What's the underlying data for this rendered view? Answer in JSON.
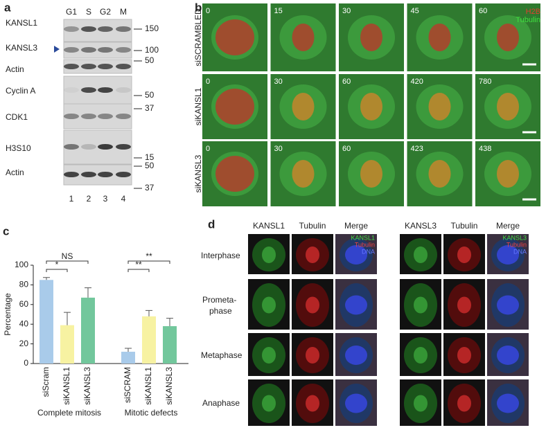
{
  "panel_labels": [
    "a",
    "b",
    "c",
    "d"
  ],
  "panel_a": {
    "lanes": [
      "G1",
      "S",
      "G2",
      "M"
    ],
    "rows": [
      "KANSL1",
      "KANSL3",
      "Actin",
      "Cyclin A",
      "CDK1",
      "H3S10",
      "Actin"
    ],
    "markers": [
      "150",
      "100",
      "50",
      "50",
      "37",
      "15",
      "50",
      "37"
    ],
    "lane_numbers": [
      "1",
      "2",
      "3",
      "4"
    ]
  },
  "panel_b": {
    "legend": [
      "H2B",
      "Tubulin"
    ],
    "rows": [
      {
        "label": "siSCRAMBLED",
        "times": [
          "0",
          "15",
          "30",
          "45",
          "60"
        ]
      },
      {
        "label": "siKANSL1",
        "times": [
          "0",
          "30",
          "60",
          "420",
          "780"
        ]
      },
      {
        "label": "siKANSL3",
        "times": [
          "0",
          "30",
          "60",
          "423",
          "438"
        ]
      }
    ]
  },
  "chart_data": {
    "type": "bar",
    "y_label": "Percentage",
    "categories": [
      "siScram",
      "siKANSL1",
      "siKANSL3",
      "siSCRAM",
      "siKANSL1",
      "siKANSL3"
    ],
    "values": [
      85,
      39,
      67,
      12,
      48,
      38
    ],
    "errors": [
      2.5,
      13,
      10,
      3.5,
      6,
      8
    ],
    "colors": [
      "#a9cbea",
      "#f7f2a2",
      "#72c79c",
      "#a9cbea",
      "#f7f2a2",
      "#72c79c"
    ],
    "groups": [
      "Complete mitosis",
      "Mitotic defects"
    ],
    "annotations": [
      {
        "text": "NS",
        "from": 0,
        "to": 2
      },
      {
        "text": "*",
        "from": 0,
        "to": 1
      },
      {
        "text": "**",
        "from": 3,
        "to": 5
      },
      {
        "text": "**",
        "from": 3,
        "to": 4
      }
    ],
    "ylim": [
      0,
      100
    ],
    "yticks": [
      0,
      20,
      40,
      60,
      80,
      100
    ]
  },
  "panel_d": {
    "columns": [
      "KANSL1",
      "Tubulin",
      "Merge",
      "KANSL3",
      "Tubulin",
      "Merge"
    ],
    "rows": [
      "Interphase",
      "Prometa-",
      "phase",
      "Metaphase",
      "Anaphase"
    ],
    "merge_legend_1": [
      "KANSL1",
      "Tubulin",
      "DNA"
    ],
    "merge_legend_2": [
      "KANSL3",
      "Tubulin",
      "DNA"
    ]
  }
}
